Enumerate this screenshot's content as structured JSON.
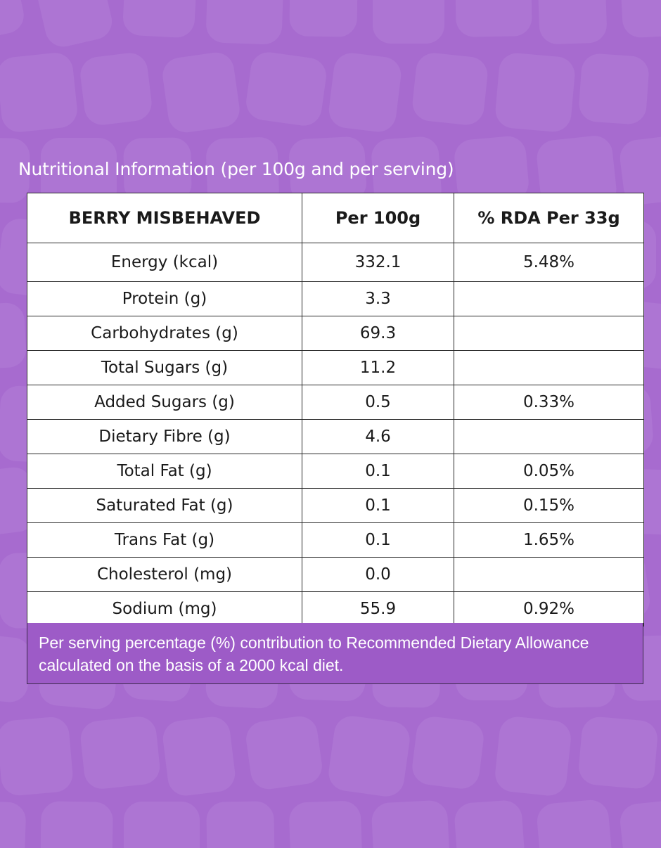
{
  "heading": "Nutritional Information (per 100g and per serving)",
  "table": {
    "columns": [
      "BERRY MISBEHAVED",
      "Per 100g",
      "% RDA Per 33g"
    ],
    "rows": [
      {
        "nutrient": "Energy (kcal)",
        "per100g": "332.1",
        "rda": "5.48%"
      },
      {
        "nutrient": "Protein (g)",
        "per100g": "3.3",
        "rda": ""
      },
      {
        "nutrient": "Carbohydrates (g)",
        "per100g": "69.3",
        "rda": ""
      },
      {
        "nutrient": "Total Sugars (g)",
        "per100g": "11.2",
        "rda": ""
      },
      {
        "nutrient": "Added Sugars (g)",
        "per100g": "0.5",
        "rda": "0.33%"
      },
      {
        "nutrient": "Dietary Fibre (g)",
        "per100g": "4.6",
        "rda": ""
      },
      {
        "nutrient": "Total Fat (g)",
        "per100g": "0.1",
        "rda": "0.05%"
      },
      {
        "nutrient": "Saturated Fat (g)",
        "per100g": "0.1",
        "rda": "0.15%"
      },
      {
        "nutrient": "Trans Fat (g)",
        "per100g": "0.1",
        "rda": "1.65%"
      },
      {
        "nutrient": "Cholesterol (mg)",
        "per100g": "0.0",
        "rda": ""
      },
      {
        "nutrient": "Sodium (mg)",
        "per100g": "55.9",
        "rda": "0.92%"
      }
    ]
  },
  "footnote": "Per serving percentage (%) contribution to Recommended Dietary Allowance calculated on the basis of a 2000 kcal diet.",
  "colors": {
    "background": "#a76bcf",
    "pattern": "#b07ad6",
    "table_bg": "#ffffff",
    "border": "#2a2a2a",
    "text_on_purple": "#ffffff"
  }
}
